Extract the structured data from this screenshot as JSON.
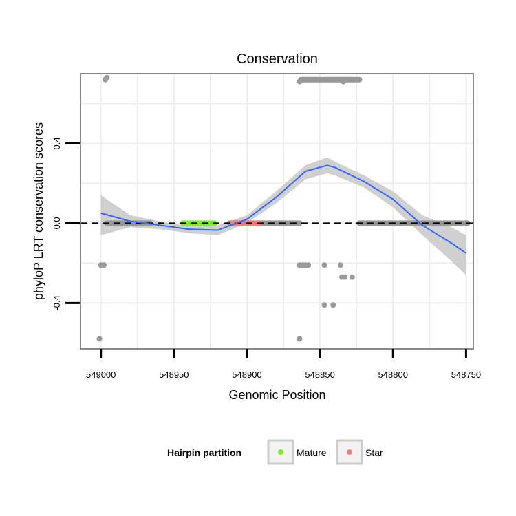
{
  "chart_data": {
    "type": "scatter",
    "title": "Conservation",
    "xlabel": "Genomic Position",
    "ylabel": "phyloP LRT conservation scores",
    "xlim": [
      549014,
      548745
    ],
    "ylim": [
      -0.63,
      0.75
    ],
    "x_reversed": true,
    "grid": true,
    "x_ticks": [
      549000,
      548950,
      548900,
      548850,
      548800,
      548750
    ],
    "x_tick_labels": [
      "549000",
      "548950",
      "548900",
      "548850",
      "548800",
      "548750"
    ],
    "y_ticks": [
      -0.4,
      0.0,
      0.4
    ],
    "y_tick_labels": [
      "-0.4",
      "0.0",
      "0.4"
    ],
    "reference_line": {
      "y": 0,
      "style": "dashed",
      "color": "#000000"
    },
    "legend": {
      "title": "Hairpin partition",
      "position": "bottom",
      "entries": [
        {
          "label": "Mature",
          "color": "#7cf01e"
        },
        {
          "label": "Star",
          "color": "#f08077"
        }
      ]
    },
    "colors": {
      "other": "#999999",
      "mature": "#7cf01e",
      "star": "#f08077",
      "smooth": "#3366ff",
      "ribbon": "#c8c8c8",
      "panel_border": "#888888",
      "grid": "#eeeeee"
    },
    "series": [
      {
        "name": "Other",
        "segments": [
          {
            "x_start": 548996,
            "x_end": 548966,
            "y": 0.0
          },
          {
            "x_start": 548912,
            "x_end": 548864,
            "y": 0.0
          },
          {
            "x_start": 548823,
            "x_end": 548749,
            "y": 0.0
          },
          {
            "x_start": 548863,
            "x_end": 548823,
            "y": 0.72
          }
        ],
        "points": [
          {
            "x": 548997,
            "y": 0.72
          },
          {
            "x": 548996,
            "y": 0.73
          },
          {
            "x": 549000,
            "y": -0.21
          },
          {
            "x": 548998,
            "y": -0.21
          },
          {
            "x": 549001,
            "y": -0.58
          },
          {
            "x": 548864,
            "y": -0.21
          },
          {
            "x": 548862,
            "y": -0.21
          },
          {
            "x": 548860,
            "y": -0.21
          },
          {
            "x": 548858,
            "y": -0.21
          },
          {
            "x": 548847,
            "y": -0.21
          },
          {
            "x": 548836,
            "y": -0.21
          },
          {
            "x": 548835,
            "y": -0.27
          },
          {
            "x": 548833,
            "y": -0.27
          },
          {
            "x": 548828,
            "y": -0.27
          },
          {
            "x": 548847,
            "y": -0.41
          },
          {
            "x": 548841,
            "y": -0.41
          },
          {
            "x": 548864,
            "y": -0.58
          },
          {
            "x": 548864,
            "y": 0.71
          },
          {
            "x": 548834,
            "y": 0.71
          }
        ]
      },
      {
        "name": "Mature",
        "segments": [
          {
            "x_start": 548944,
            "x_end": 548922,
            "y": 0.0
          }
        ]
      },
      {
        "name": "Star",
        "segments": [
          {
            "x_start": 548910,
            "x_end": 548892,
            "y": 0.0
          }
        ]
      }
    ],
    "smooth": {
      "x": [
        549000,
        548980,
        548960,
        548940,
        548920,
        548900,
        548880,
        548860,
        548845,
        548840,
        548820,
        548800,
        548780,
        548760,
        548750
      ],
      "y": [
        0.05,
        0.01,
        -0.01,
        -0.03,
        -0.035,
        0.02,
        0.13,
        0.26,
        0.29,
        0.28,
        0.21,
        0.12,
        -0.01,
        -0.1,
        -0.15
      ],
      "se_upper": [
        0.14,
        0.04,
        0.01,
        -0.015,
        -0.01,
        0.04,
        0.16,
        0.29,
        0.33,
        0.31,
        0.24,
        0.16,
        0.04,
        -0.02,
        -0.06
      ],
      "se_lower": [
        -0.06,
        -0.02,
        -0.03,
        -0.05,
        -0.06,
        0.0,
        0.1,
        0.22,
        0.25,
        0.24,
        0.18,
        0.08,
        -0.06,
        -0.19,
        -0.26
      ]
    }
  }
}
